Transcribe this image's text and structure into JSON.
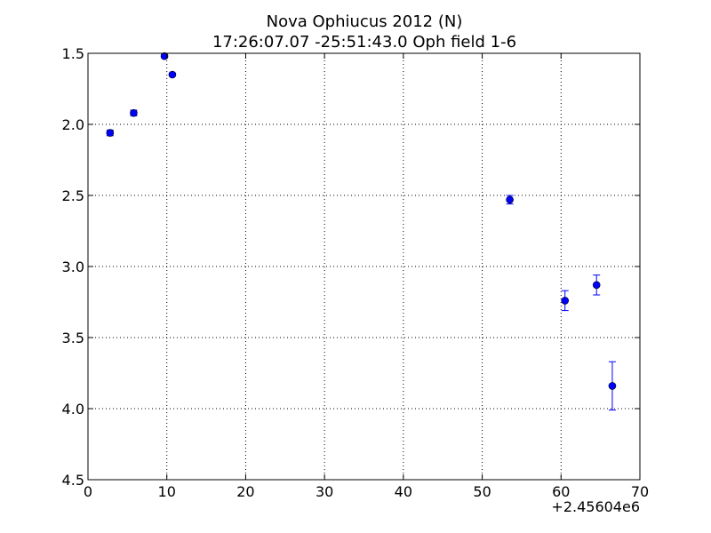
{
  "chart_data": {
    "type": "scatter",
    "title": "Nova Ophiucus 2012 (N)",
    "subtitle": "17:26:07.07 -25:51:43.0 Oph field 1-6",
    "xlabel": "",
    "ylabel": "",
    "x_offset_label": "+2.45604e6",
    "xlim": [
      0,
      70
    ],
    "ylim": [
      4.5,
      1.5
    ],
    "y_inverted": true,
    "grid": true,
    "xticks": [
      0,
      10,
      20,
      30,
      40,
      50,
      60,
      70
    ],
    "yticks": [
      1.5,
      2.0,
      2.5,
      3.0,
      3.5,
      4.0,
      4.5
    ],
    "xtick_labels": [
      "0",
      "10",
      "20",
      "30",
      "40",
      "50",
      "60",
      "70"
    ],
    "ytick_labels": [
      "1.5",
      "2.0",
      "2.5",
      "3.0",
      "3.5",
      "4.0",
      "4.5"
    ],
    "marker_color": "#0000ff",
    "series": [
      {
        "points": [
          {
            "x": 2.8,
            "y": 2.06,
            "err": 0.02
          },
          {
            "x": 5.8,
            "y": 1.92,
            "err": 0.02
          },
          {
            "x": 9.7,
            "y": 1.52,
            "err": 0.01
          },
          {
            "x": 10.7,
            "y": 1.65,
            "err": 0.01
          },
          {
            "x": 53.5,
            "y": 2.53,
            "err": 0.03
          },
          {
            "x": 60.5,
            "y": 3.24,
            "err": 0.07
          },
          {
            "x": 64.5,
            "y": 3.13,
            "err": 0.07
          },
          {
            "x": 66.5,
            "y": 3.84,
            "err": 0.17
          }
        ]
      }
    ]
  }
}
